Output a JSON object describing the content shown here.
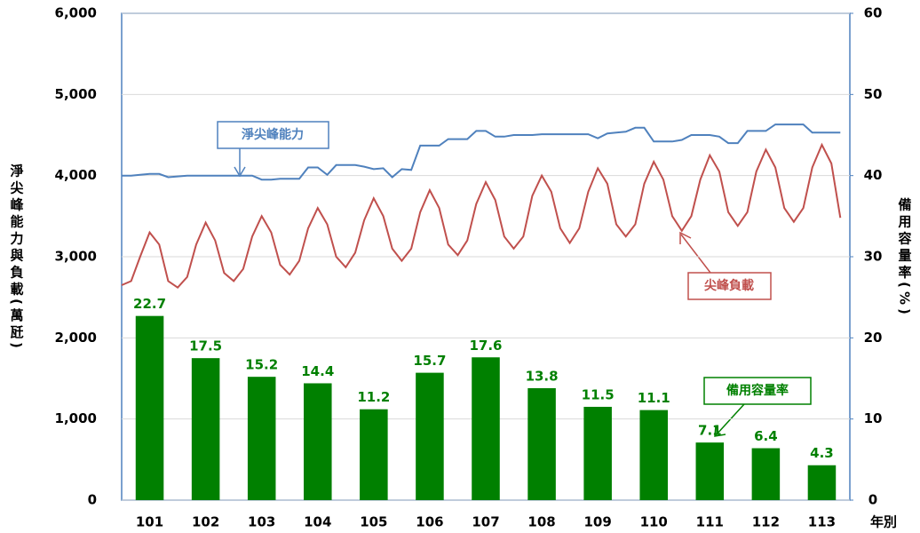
{
  "chart_data": {
    "type": "bar",
    "categories": [
      "101",
      "102",
      "103",
      "104",
      "105",
      "106",
      "107",
      "108",
      "109",
      "110",
      "111",
      "112",
      "113"
    ],
    "x_label": "年別",
    "y_label": "淨尖峰能力與負載(萬瓩)",
    "y2_label": "備用容量率(%)",
    "ylim": [
      0,
      6000
    ],
    "yticks": [
      0,
      {
        "value": 1000,
        "label": "1,000"
      },
      {
        "value": 2000,
        "label": "2,000"
      },
      {
        "value": 3000,
        "label": "3,000"
      },
      {
        "value": 4000,
        "label": "4,000"
      },
      {
        "value": 5000,
        "label": "5,000"
      },
      {
        "value": 6000,
        "label": "6,000"
      }
    ],
    "y2lim": [
      0,
      60
    ],
    "y2ticks": [
      0,
      10,
      20,
      30,
      40,
      50,
      60
    ],
    "xlim": [
      101,
      114
    ],
    "grid": true,
    "series": [
      {
        "name": "備用容量率",
        "type": "bar",
        "axis": "y2",
        "color": "#008000",
        "values": [
          22.7,
          17.5,
          15.2,
          14.4,
          11.2,
          15.7,
          17.6,
          13.8,
          11.5,
          11.1,
          7.1,
          6.4,
          4.3
        ]
      },
      {
        "name": "淨尖峰能力",
        "type": "line",
        "color": "#4f81bd",
        "x": [
          101,
          101.17,
          101.33,
          101.5,
          101.67,
          101.83,
          102,
          102.17,
          102.33,
          102.5,
          102.67,
          102.83,
          103,
          103.17,
          103.33,
          103.5,
          103.67,
          103.83,
          104,
          104.17,
          104.33,
          104.5,
          104.67,
          104.83,
          105,
          105.17,
          105.33,
          105.5,
          105.67,
          105.83,
          106,
          106.17,
          106.33,
          106.5,
          106.67,
          106.83,
          107,
          107.17,
          107.33,
          107.5,
          107.67,
          107.83,
          108,
          108.17,
          108.33,
          108.5,
          108.67,
          108.83,
          109,
          109.17,
          109.33,
          109.5,
          109.67,
          109.83,
          110,
          110.17,
          110.33,
          110.5,
          110.67,
          110.83,
          111,
          111.17,
          111.33,
          111.5,
          111.67,
          111.83,
          112,
          112.17,
          112.33,
          112.5,
          112.67,
          112.83,
          113,
          113.17,
          113.33,
          113.5,
          113.67,
          113.83
        ],
        "values": [
          4000,
          4000,
          4010,
          4020,
          4020,
          3980,
          3990,
          4000,
          4000,
          4000,
          4000,
          4000,
          4000,
          4000,
          4000,
          3950,
          3950,
          3960,
          3960,
          3960,
          4100,
          4100,
          4010,
          4130,
          4130,
          4130,
          4110,
          4080,
          4090,
          3980,
          4080,
          4070,
          4370,
          4370,
          4370,
          4450,
          4450,
          4450,
          4550,
          4550,
          4480,
          4480,
          4500,
          4500,
          4500,
          4510,
          4510,
          4510,
          4510,
          4510,
          4510,
          4460,
          4520,
          4530,
          4540,
          4590,
          4590,
          4420,
          4420,
          4420,
          4440,
          4500,
          4500,
          4500,
          4480,
          4400,
          4400,
          4550,
          4550,
          4550,
          4630,
          4630,
          4630,
          4630,
          4530,
          4530,
          4530,
          4530
        ]
      },
      {
        "name": "尖峰負載",
        "type": "line",
        "color": "#c0504d",
        "x": [
          101,
          101.17,
          101.33,
          101.5,
          101.67,
          101.83,
          102,
          102.17,
          102.33,
          102.5,
          102.67,
          102.83,
          103,
          103.17,
          103.33,
          103.5,
          103.67,
          103.83,
          104,
          104.17,
          104.33,
          104.5,
          104.67,
          104.83,
          105,
          105.17,
          105.33,
          105.5,
          105.67,
          105.83,
          106,
          106.17,
          106.33,
          106.5,
          106.67,
          106.83,
          107,
          107.17,
          107.33,
          107.5,
          107.67,
          107.83,
          108,
          108.17,
          108.33,
          108.5,
          108.67,
          108.83,
          109,
          109.17,
          109.33,
          109.5,
          109.67,
          109.83,
          110,
          110.17,
          110.33,
          110.5,
          110.67,
          110.83,
          111,
          111.17,
          111.33,
          111.5,
          111.67,
          111.83,
          112,
          112.17,
          112.33,
          112.5,
          112.67,
          112.83,
          113,
          113.17,
          113.33,
          113.5,
          113.67,
          113.83
        ],
        "values": [
          2650,
          2700,
          3000,
          3300,
          3150,
          2700,
          2620,
          2750,
          3150,
          3420,
          3200,
          2800,
          2700,
          2850,
          3250,
          3500,
          3300,
          2900,
          2780,
          2950,
          3350,
          3600,
          3400,
          3000,
          2870,
          3050,
          3450,
          3720,
          3500,
          3100,
          2950,
          3100,
          3550,
          3820,
          3600,
          3150,
          3020,
          3200,
          3650,
          3920,
          3700,
          3250,
          3100,
          3250,
          3750,
          4000,
          3800,
          3350,
          3170,
          3350,
          3800,
          4090,
          3900,
          3400,
          3250,
          3400,
          3900,
          4170,
          3950,
          3500,
          3320,
          3500,
          3950,
          4250,
          4050,
          3550,
          3380,
          3550,
          4050,
          4320,
          4100,
          3600,
          3430,
          3600,
          4100,
          4380,
          4150,
          3480
        ]
      }
    ]
  }
}
